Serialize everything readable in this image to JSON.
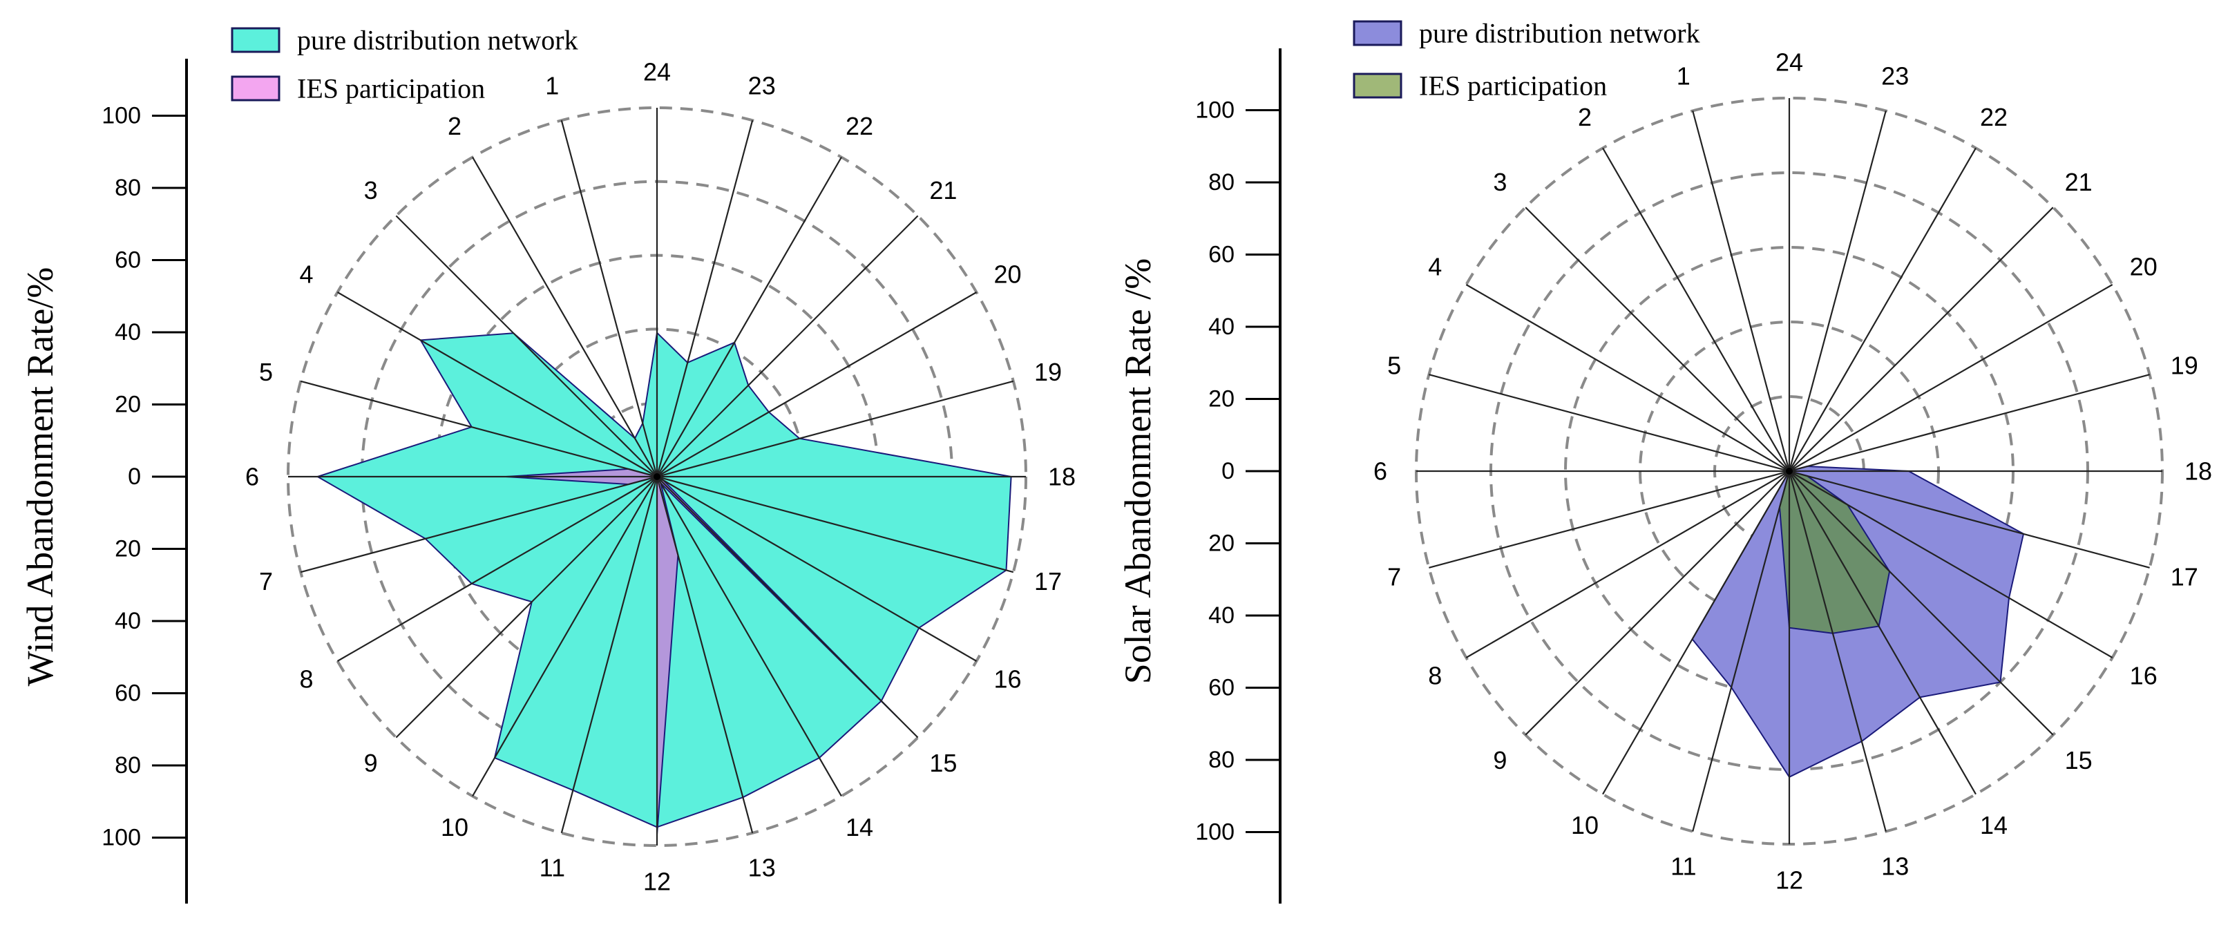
{
  "chart_data": [
    {
      "type": "radar",
      "title": "",
      "ylabel": "Wind Abandonment  Rate/%",
      "ylim": [
        0,
        100
      ],
      "yticks_upper": [
        "100",
        "80",
        "60",
        "40",
        "20",
        "0"
      ],
      "yticks_lower": [
        "20",
        "40",
        "60",
        "80",
        "100"
      ],
      "categories": [
        "24",
        "1",
        "2",
        "3",
        "4",
        "5",
        "6",
        "7",
        "8",
        "9",
        "10",
        "11",
        "12",
        "13",
        "14",
        "15",
        "16",
        "17",
        "18",
        "19",
        "20",
        "21",
        "22",
        "23"
      ],
      "rings": [
        20,
        40,
        60,
        80,
        100
      ],
      "series": [
        {
          "name": "pure distribution network",
          "color": "#5cf0dc",
          "values": [
            39,
            15,
            12,
            55,
            74,
            52,
            92,
            65,
            58,
            48,
            88,
            88,
            95,
            90,
            88,
            86,
            82,
            98,
            96,
            40,
            35,
            35,
            42,
            32
          ]
        },
        {
          "name": "IES participation",
          "color": "#b497db",
          "legend_color": "#f3a6f0",
          "values": [
            0,
            0,
            0,
            0,
            0,
            8,
            41,
            8,
            0,
            0,
            0,
            0,
            97,
            22,
            2,
            92,
            2,
            0,
            0,
            0,
            0,
            0,
            0,
            0
          ]
        }
      ]
    },
    {
      "type": "radar",
      "title": "",
      "ylabel": "Solar Abandonment  Rate /%",
      "ylim": [
        0,
        100
      ],
      "yticks_upper": [
        "100",
        "80",
        "60",
        "40",
        "20",
        "0"
      ],
      "yticks_lower": [
        "20",
        "40",
        "60",
        "80",
        "100"
      ],
      "categories": [
        "24",
        "1",
        "2",
        "3",
        "4",
        "5",
        "6",
        "7",
        "8",
        "9",
        "10",
        "11",
        "12",
        "13",
        "14",
        "15",
        "16",
        "17",
        "18",
        "19",
        "20",
        "21",
        "22",
        "23"
      ],
      "rings": [
        20,
        40,
        60,
        80,
        100
      ],
      "series": [
        {
          "name": "pure distribution network",
          "color": "#8c8cdc",
          "values": [
            0,
            0,
            0,
            0,
            0,
            0,
            0,
            0,
            0,
            0,
            52,
            60,
            82,
            75,
            70,
            80,
            68,
            65,
            32,
            5,
            0,
            0,
            0,
            0
          ]
        },
        {
          "name": "IES participation",
          "color": "#6b8f6b",
          "legend_color": "#a0b878",
          "values": [
            0,
            0,
            0,
            0,
            0,
            0,
            0,
            0,
            0,
            0,
            0,
            10,
            42,
            45,
            48,
            38,
            18,
            5,
            0,
            0,
            0,
            0,
            0,
            0
          ]
        }
      ]
    }
  ]
}
